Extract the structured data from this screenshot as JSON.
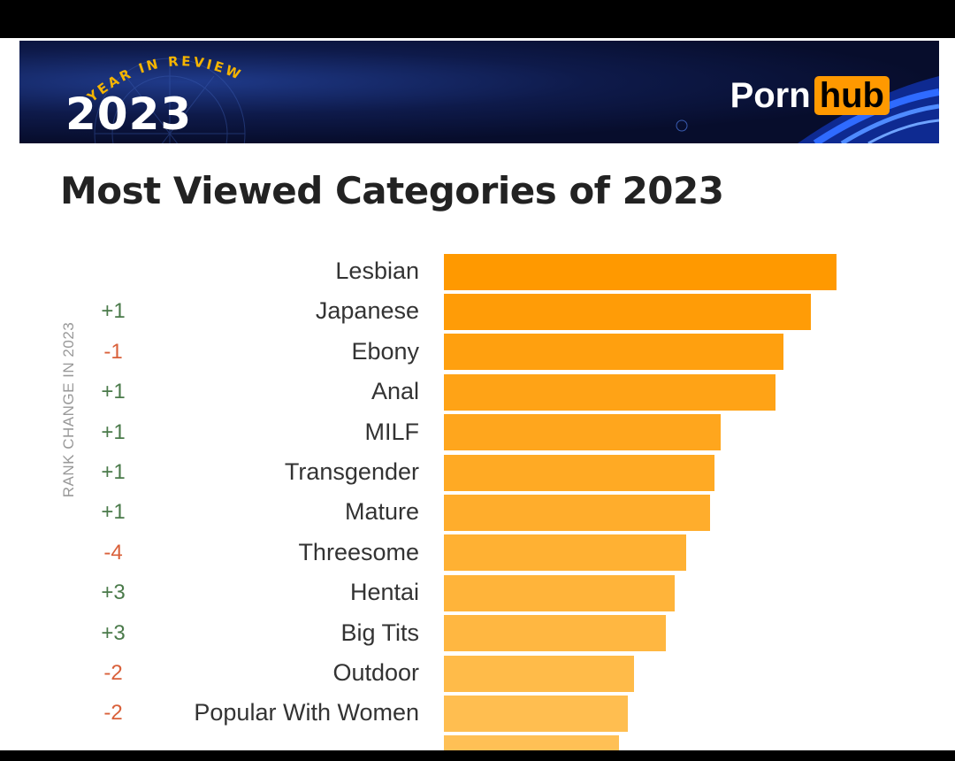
{
  "banner": {
    "year_in_review": "YEAR IN REVIEW",
    "year": "2023",
    "logo_part1": "Porn",
    "logo_part2": "hub"
  },
  "title": "Most Viewed Categories of 2023",
  "colors": {
    "bar": "#ff9900",
    "positive": "#4a7a4a",
    "negative": "#d9603a"
  },
  "chart_data": {
    "type": "bar",
    "orientation": "horizontal",
    "title": "Most Viewed Categories of 2023",
    "ylabel": "RANK CHANGE IN 2023",
    "categories": [
      "Lesbian",
      "Japanese",
      "Ebony",
      "Anal",
      "MILF",
      "Transgender",
      "Mature",
      "Threesome",
      "Hentai",
      "Big Tits",
      "Outdoor",
      "Popular With Women"
    ],
    "rank_change": [
      "",
      "+1",
      "-1",
      "+1",
      "+1",
      "+1",
      "+1",
      "-4",
      "+3",
      "+3",
      "-2",
      "-2"
    ],
    "values": [
      100,
      93.5,
      86.5,
      84.5,
      70.5,
      69,
      67.7,
      61.7,
      58.8,
      56.6,
      48.4,
      46.8
    ],
    "xlim": [
      0,
      100
    ]
  }
}
